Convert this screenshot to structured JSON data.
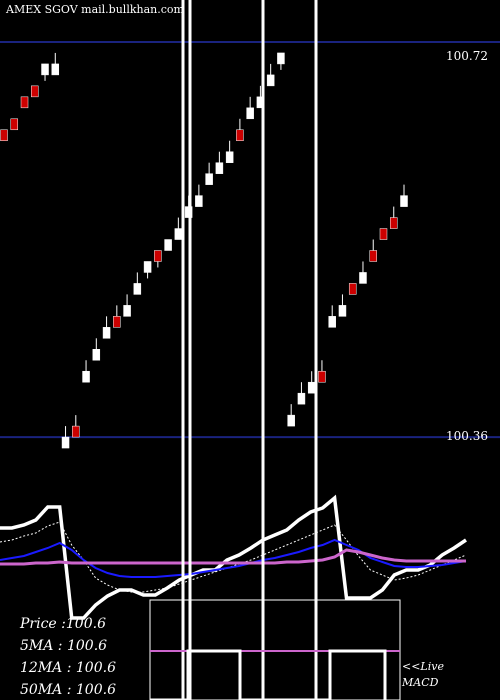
{
  "header": {
    "title": "AMEX SGOV mail.bullkhan.com"
  },
  "levels": [
    {
      "label": "100.72",
      "value": 100.72
    },
    {
      "label": "100.36",
      "value": 100.36
    }
  ],
  "stats": [
    {
      "label": "Price   :",
      "value": "100.6"
    },
    {
      "label": "5MA : ",
      "value": "100.6"
    },
    {
      "label": "12MA : ",
      "value": "100.6"
    },
    {
      "label": "50MA : ",
      "value": "100.6"
    }
  ],
  "macd": {
    "line1": "<<Live",
    "line2": "MACD"
  },
  "colors": {
    "background": "#000000",
    "level_line": "#1a237e",
    "up_candle": "#ffffff",
    "down_candle": "#cc0000",
    "price_line": "#ffffff",
    "ma_short": "#ffffff",
    "ma_mid": "#1a1aff",
    "ma_long": "#cc66cc"
  },
  "chart_data": {
    "type": "candlestick",
    "ylim": [
      100.33,
      100.74
    ],
    "candles": [
      {
        "o": 100.64,
        "c": 100.64,
        "h": 100.64,
        "l": 100.64,
        "dir": "down"
      },
      {
        "o": 100.65,
        "c": 100.65,
        "h": 100.65,
        "l": 100.65,
        "dir": "down"
      },
      {
        "o": 100.67,
        "c": 100.67,
        "h": 100.67,
        "l": 100.67,
        "dir": "down"
      },
      {
        "o": 100.68,
        "c": 100.68,
        "h": 100.68,
        "l": 100.68,
        "dir": "down"
      },
      {
        "o": 100.69,
        "c": 100.7,
        "h": 100.7,
        "l": 100.69,
        "dir": "up"
      },
      {
        "o": 100.7,
        "c": 100.7,
        "h": 100.71,
        "l": 100.7,
        "dir": "up"
      },
      {
        "o": 100.36,
        "c": 100.36,
        "h": 100.37,
        "l": 100.36,
        "dir": "up"
      },
      {
        "o": 100.37,
        "c": 100.37,
        "h": 100.38,
        "l": 100.37,
        "dir": "down"
      },
      {
        "o": 100.42,
        "c": 100.42,
        "h": 100.43,
        "l": 100.42,
        "dir": "up"
      },
      {
        "o": 100.44,
        "c": 100.44,
        "h": 100.45,
        "l": 100.44,
        "dir": "up"
      },
      {
        "o": 100.46,
        "c": 100.46,
        "h": 100.47,
        "l": 100.46,
        "dir": "up"
      },
      {
        "o": 100.47,
        "c": 100.47,
        "h": 100.48,
        "l": 100.47,
        "dir": "down"
      },
      {
        "o": 100.48,
        "c": 100.48,
        "h": 100.49,
        "l": 100.48,
        "dir": "up"
      },
      {
        "o": 100.5,
        "c": 100.5,
        "h": 100.51,
        "l": 100.5,
        "dir": "up"
      },
      {
        "o": 100.51,
        "c": 100.52,
        "h": 100.52,
        "l": 100.51,
        "dir": "up"
      },
      {
        "o": 100.52,
        "c": 100.53,
        "h": 100.53,
        "l": 100.52,
        "dir": "down"
      },
      {
        "o": 100.54,
        "c": 100.54,
        "h": 100.54,
        "l": 100.54,
        "dir": "up"
      },
      {
        "o": 100.55,
        "c": 100.55,
        "h": 100.56,
        "l": 100.55,
        "dir": "up"
      },
      {
        "o": 100.57,
        "c": 100.57,
        "h": 100.58,
        "l": 100.57,
        "dir": "up"
      },
      {
        "o": 100.58,
        "c": 100.58,
        "h": 100.59,
        "l": 100.58,
        "dir": "up"
      },
      {
        "o": 100.6,
        "c": 100.6,
        "h": 100.61,
        "l": 100.6,
        "dir": "up"
      },
      {
        "o": 100.61,
        "c": 100.61,
        "h": 100.62,
        "l": 100.61,
        "dir": "up"
      },
      {
        "o": 100.62,
        "c": 100.62,
        "h": 100.63,
        "l": 100.62,
        "dir": "up"
      },
      {
        "o": 100.64,
        "c": 100.64,
        "h": 100.65,
        "l": 100.64,
        "dir": "down"
      },
      {
        "o": 100.66,
        "c": 100.66,
        "h": 100.67,
        "l": 100.66,
        "dir": "up"
      },
      {
        "o": 100.67,
        "c": 100.67,
        "h": 100.68,
        "l": 100.67,
        "dir": "up"
      },
      {
        "o": 100.69,
        "c": 100.69,
        "h": 100.7,
        "l": 100.69,
        "dir": "up"
      },
      {
        "o": 100.7,
        "c": 100.71,
        "h": 100.71,
        "l": 100.7,
        "dir": "up"
      },
      {
        "o": 100.38,
        "c": 100.38,
        "h": 100.39,
        "l": 100.38,
        "dir": "up"
      },
      {
        "o": 100.4,
        "c": 100.4,
        "h": 100.41,
        "l": 100.4,
        "dir": "up"
      },
      {
        "o": 100.41,
        "c": 100.41,
        "h": 100.42,
        "l": 100.41,
        "dir": "up"
      },
      {
        "o": 100.42,
        "c": 100.42,
        "h": 100.43,
        "l": 100.42,
        "dir": "down"
      },
      {
        "o": 100.47,
        "c": 100.47,
        "h": 100.48,
        "l": 100.47,
        "dir": "up"
      },
      {
        "o": 100.48,
        "c": 100.48,
        "h": 100.49,
        "l": 100.48,
        "dir": "up"
      },
      {
        "o": 100.5,
        "c": 100.5,
        "h": 100.5,
        "l": 100.5,
        "dir": "down"
      },
      {
        "o": 100.51,
        "c": 100.51,
        "h": 100.52,
        "l": 100.51,
        "dir": "up"
      },
      {
        "o": 100.53,
        "c": 100.53,
        "h": 100.54,
        "l": 100.53,
        "dir": "down"
      },
      {
        "o": 100.55,
        "c": 100.55,
        "h": 100.55,
        "l": 100.55,
        "dir": "down"
      },
      {
        "o": 100.56,
        "c": 100.56,
        "h": 100.57,
        "l": 100.56,
        "dir": "down"
      },
      {
        "o": 100.58,
        "c": 100.58,
        "h": 100.59,
        "l": 100.58,
        "dir": "up"
      }
    ],
    "ma_series": [
      {
        "key": "price_line",
        "values": [
          528,
          528,
          525,
          520,
          507,
          507,
          618,
          618,
          605,
          596,
          590,
          590,
          595,
          595,
          588,
          580,
          575,
          570,
          570,
          560,
          555,
          548,
          540,
          535,
          530,
          520,
          512,
          508,
          498,
          598,
          598,
          598,
          590,
          575,
          570,
          570,
          565,
          555,
          548,
          540
        ]
      },
      {
        "key": "ma_short",
        "values": [
          542,
          540,
          536,
          533,
          526,
          522,
          545,
          560,
          578,
          585,
          590,
          592,
          592,
          590,
          588,
          584,
          580,
          576,
          572,
          568,
          564,
          560,
          555,
          550,
          545,
          540,
          535,
          530,
          525,
          540,
          556,
          570,
          575,
          580,
          578,
          575,
          570,
          565,
          560,
          555
        ]
      },
      {
        "key": "ma_mid",
        "values": [
          560,
          558,
          556,
          552,
          548,
          543,
          550,
          560,
          568,
          573,
          576,
          577,
          577,
          577,
          576,
          575,
          574,
          572,
          570,
          568,
          566,
          563,
          560,
          558,
          555,
          552,
          548,
          545,
          540,
          545,
          550,
          558,
          562,
          566,
          567,
          567,
          566,
          565,
          563,
          561
        ]
      },
      {
        "key": "ma_long",
        "values": [
          564,
          564,
          564,
          563,
          563,
          562,
          563,
          563,
          563,
          563,
          563,
          563,
          563,
          563,
          563,
          563,
          563,
          563,
          563,
          563,
          563,
          563,
          563,
          563,
          562,
          562,
          561,
          560,
          557,
          550,
          552,
          555,
          558,
          560,
          561,
          561,
          561,
          561,
          561,
          561
        ]
      }
    ]
  }
}
